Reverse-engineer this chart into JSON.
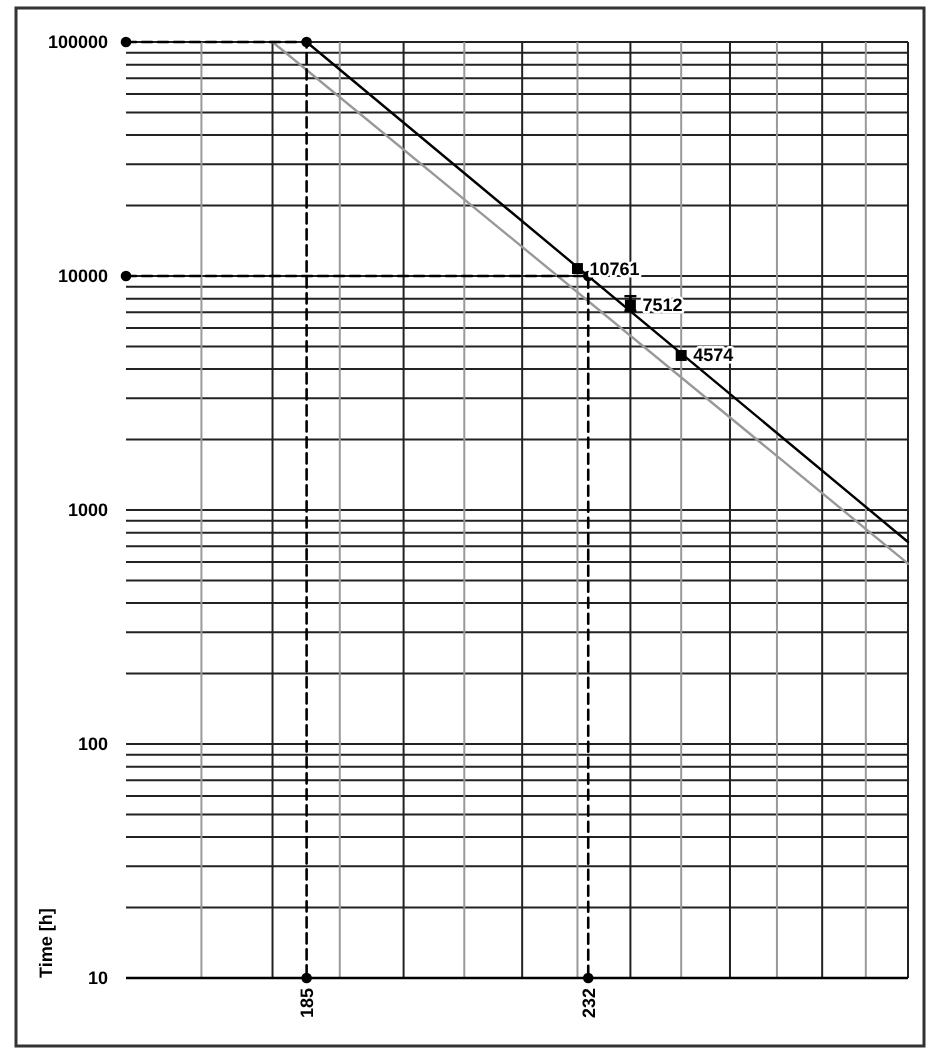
{
  "chart_data": {
    "type": "line",
    "ylabel": "Time [h]",
    "log": "xy",
    "grid": true,
    "xlim": [
      160,
      300
    ],
    "xticks": [
      {
        "value": 170,
        "label": null
      },
      {
        "value": 180,
        "label": null
      },
      185,
      {
        "value": 190,
        "label": null
      },
      {
        "value": 200,
        "label": null
      },
      {
        "value": 210,
        "label": null
      },
      {
        "value": 220,
        "label": null
      },
      {
        "value": 230,
        "label": null
      },
      232,
      {
        "value": 240,
        "label": null
      },
      {
        "value": 250,
        "label": null
      },
      {
        "value": 260,
        "label": null
      },
      {
        "value": 270,
        "label": null
      },
      {
        "value": 280,
        "label": null
      },
      {
        "value": 290,
        "label": null
      },
      {
        "value": 300,
        "label": null
      }
    ],
    "ylim": [
      10,
      100000
    ],
    "yticks": [
      10,
      {
        "value": 20,
        "label": null
      },
      {
        "value": 30,
        "label": null
      },
      {
        "value": 40,
        "label": null
      },
      {
        "value": 50,
        "label": null
      },
      {
        "value": 60,
        "label": null
      },
      {
        "value": 70,
        "label": null
      },
      {
        "value": 80,
        "label": null
      },
      {
        "value": 90,
        "label": null
      },
      100,
      {
        "value": 200,
        "label": null
      },
      {
        "value": 300,
        "label": null
      },
      {
        "value": 400,
        "label": null
      },
      {
        "value": 500,
        "label": null
      },
      {
        "value": 600,
        "label": null
      },
      {
        "value": 700,
        "label": null
      },
      {
        "value": 800,
        "label": null
      },
      {
        "value": 900,
        "label": null
      },
      1000,
      {
        "value": 2000,
        "label": null
      },
      {
        "value": 3000,
        "label": null
      },
      {
        "value": 4000,
        "label": null
      },
      {
        "value": 5000,
        "label": null
      },
      {
        "value": 6000,
        "label": null
      },
      {
        "value": 7000,
        "label": null
      },
      {
        "value": 8000,
        "label": null
      },
      {
        "value": 9000,
        "label": null
      },
      10000,
      {
        "value": 20000,
        "label": null
      },
      {
        "value": 30000,
        "label": null
      },
      {
        "value": 40000,
        "label": null
      },
      {
        "value": 50000,
        "label": null
      },
      {
        "value": 60000,
        "label": null
      },
      {
        "value": 70000,
        "label": null
      },
      {
        "value": 80000,
        "label": null
      },
      {
        "value": 90000,
        "label": null
      },
      100000
    ],
    "series": [
      {
        "color": "#999999",
        "x": [
          180,
          300
        ],
        "values": [
          100000,
          590
        ],
        "line_style": "solid"
      },
      {
        "color": "#000000",
        "x": [
          185,
          300
        ],
        "values": [
          100000,
          730
        ],
        "line_style": "solid"
      },
      {
        "color": "#000000",
        "x": [
          160,
          185,
          185
        ],
        "values": [
          100000,
          100000,
          10
        ],
        "marker": "circle",
        "line_style": "dashed"
      },
      {
        "color": "#000000",
        "x": [
          160,
          232,
          232
        ],
        "values": [
          10000,
          10000,
          10
        ],
        "marker": "circle",
        "line_style": "dashed"
      },
      {
        "type": "scatter",
        "color": "#000000",
        "x": [
          230,
          240,
          250
        ],
        "values": [
          10761,
          7512,
          4574
        ],
        "marker": "square",
        "value_labels": [
          "10761",
          "7512",
          "4574"
        ],
        "errors": [
          null,
          [
            7100,
            8200
          ],
          null
        ]
      }
    ]
  }
}
